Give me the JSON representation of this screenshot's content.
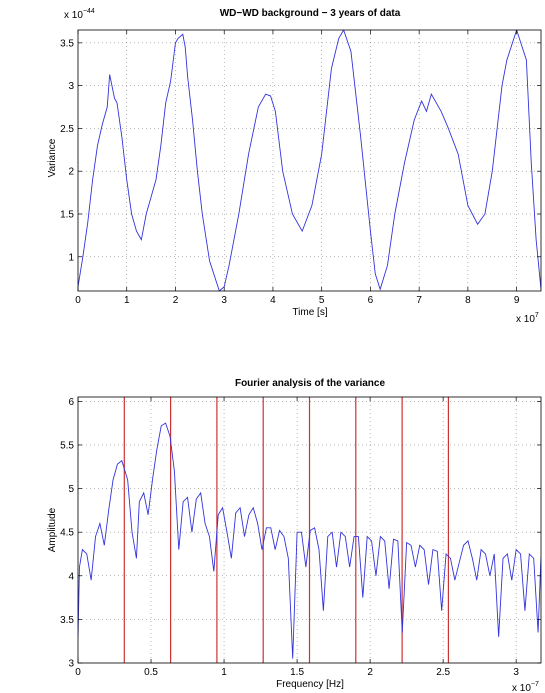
{
  "chart_data": [
    {
      "type": "line",
      "title": "WD−WD background − 3 years of data",
      "xlabel": "Time [s]",
      "ylabel": "Variance",
      "x_multiplier": "x 10",
      "x_exponent": "7",
      "y_multiplier": "x 10",
      "y_exponent": "−44",
      "xlim": [
        0,
        9.5
      ],
      "ylim": [
        0.6,
        3.65
      ],
      "xticks": [
        0,
        1,
        2,
        3,
        4,
        5,
        6,
        7,
        8,
        9
      ],
      "xtick_labels": [
        "0",
        "1",
        "2",
        "3",
        "4",
        "5",
        "6",
        "7",
        "8",
        "9"
      ],
      "yticks": [
        1,
        1.5,
        2,
        2.5,
        3,
        3.5
      ],
      "ytick_labels": [
        "1",
        "1.5",
        "2",
        "2.5",
        "3",
        "3.5"
      ],
      "grid": true,
      "line_color": "#3333dd",
      "series": [
        {
          "x": [
            0,
            0.1,
            0.2,
            0.3,
            0.4,
            0.5,
            0.6,
            0.65,
            0.75,
            0.8,
            0.9,
            1.0,
            1.1,
            1.2,
            1.3,
            1.4,
            1.5,
            1.6,
            1.7,
            1.8,
            1.9,
            2.0,
            2.05,
            2.15,
            2.2,
            2.25,
            2.35,
            2.45,
            2.55,
            2.7,
            2.9,
            3.0,
            3.1,
            3.3,
            3.5,
            3.7,
            3.85,
            3.95,
            4.05,
            4.2,
            4.4,
            4.6,
            4.8,
            5.0,
            5.2,
            5.35,
            5.45,
            5.6,
            5.8,
            6.0,
            6.1,
            6.2,
            6.35,
            6.5,
            6.7,
            6.9,
            7.05,
            7.15,
            7.25,
            7.45,
            7.6,
            7.8,
            8.0,
            8.2,
            8.35,
            8.5,
            8.6,
            8.7,
            8.8,
            9.0,
            9.2,
            9.3,
            9.4,
            9.5
          ],
          "y": [
            0.65,
            1.0,
            1.4,
            1.9,
            2.3,
            2.55,
            2.75,
            3.13,
            2.85,
            2.8,
            2.4,
            1.9,
            1.5,
            1.3,
            1.2,
            1.5,
            1.7,
            1.9,
            2.3,
            2.8,
            3.05,
            3.5,
            3.55,
            3.6,
            3.45,
            3.1,
            2.6,
            2.0,
            1.5,
            0.95,
            0.6,
            0.65,
            0.9,
            1.5,
            2.2,
            2.75,
            2.9,
            2.88,
            2.7,
            2.0,
            1.5,
            1.3,
            1.6,
            2.2,
            3.2,
            3.55,
            3.65,
            3.4,
            2.4,
            1.3,
            0.8,
            0.62,
            0.9,
            1.5,
            2.1,
            2.6,
            2.82,
            2.7,
            2.9,
            2.7,
            2.5,
            2.2,
            1.6,
            1.38,
            1.5,
            2.0,
            2.5,
            3.0,
            3.3,
            3.65,
            3.3,
            2.1,
            1.2,
            0.62
          ]
        }
      ]
    },
    {
      "type": "line",
      "title": "Fourier analysis of the variance",
      "xlabel": "Frequency [Hz]",
      "ylabel": "Amplitude",
      "x_multiplier": "x 10",
      "x_exponent": "−7",
      "xlim": [
        0,
        3.17
      ],
      "ylim": [
        3,
        6.05
      ],
      "xticks": [
        0,
        0.5,
        1,
        1.5,
        2,
        2.5,
        3
      ],
      "xtick_labels": [
        "0",
        "0.5",
        "1",
        "1.5",
        "2",
        "2.5",
        "3"
      ],
      "yticks": [
        3,
        3.5,
        4,
        4.5,
        5,
        5.5,
        6
      ],
      "ytick_labels": [
        "3",
        "3.5",
        "4",
        "4.5",
        "5",
        "5.5",
        "6"
      ],
      "grid": true,
      "line_color": "#3333dd",
      "vline_color": "#cc3333",
      "vlines": [
        0.317,
        0.634,
        0.951,
        1.268,
        1.585,
        1.902,
        2.219,
        2.536
      ],
      "series": [
        {
          "x": [
            0,
            0.01,
            0.03,
            0.06,
            0.09,
            0.12,
            0.15,
            0.18,
            0.21,
            0.24,
            0.27,
            0.3,
            0.34,
            0.37,
            0.4,
            0.42,
            0.45,
            0.48,
            0.51,
            0.54,
            0.57,
            0.6,
            0.63,
            0.66,
            0.69,
            0.72,
            0.75,
            0.78,
            0.81,
            0.84,
            0.87,
            0.9,
            0.93,
            0.96,
            0.99,
            1.02,
            1.05,
            1.08,
            1.11,
            1.14,
            1.17,
            1.2,
            1.23,
            1.26,
            1.29,
            1.32,
            1.35,
            1.38,
            1.41,
            1.44,
            1.47,
            1.5,
            1.53,
            1.56,
            1.59,
            1.62,
            1.65,
            1.68,
            1.71,
            1.74,
            1.77,
            1.8,
            1.83,
            1.86,
            1.89,
            1.92,
            1.95,
            1.98,
            2.01,
            2.04,
            2.07,
            2.1,
            2.13,
            2.16,
            2.19,
            2.22,
            2.25,
            2.28,
            2.31,
            2.34,
            2.37,
            2.4,
            2.43,
            2.46,
            2.49,
            2.52,
            2.55,
            2.58,
            2.61,
            2.64,
            2.67,
            2.7,
            2.73,
            2.76,
            2.79,
            2.82,
            2.85,
            2.88,
            2.91,
            2.94,
            2.97,
            3.0,
            3.03,
            3.06,
            3.09,
            3.12,
            3.15,
            3.17
          ],
          "y": [
            3.3,
            4.1,
            4.3,
            4.25,
            3.95,
            4.45,
            4.6,
            4.35,
            4.75,
            5.1,
            5.28,
            5.32,
            5.1,
            4.5,
            4.2,
            4.85,
            4.95,
            4.7,
            5.1,
            5.45,
            5.72,
            5.75,
            5.6,
            5.2,
            4.3,
            4.85,
            4.9,
            4.5,
            4.88,
            4.95,
            4.6,
            4.45,
            4.05,
            4.7,
            4.78,
            4.5,
            4.2,
            4.72,
            4.78,
            4.45,
            4.7,
            4.78,
            4.6,
            4.3,
            4.55,
            4.55,
            4.3,
            4.52,
            4.45,
            4.2,
            3.05,
            4.5,
            4.5,
            4.1,
            4.52,
            4.55,
            4.3,
            3.6,
            4.45,
            4.5,
            4.1,
            4.5,
            4.45,
            4.1,
            4.45,
            4.45,
            3.75,
            4.45,
            4.4,
            4.0,
            4.45,
            4.4,
            3.85,
            4.42,
            4.4,
            3.35,
            4.38,
            4.35,
            4.1,
            4.35,
            4.3,
            3.9,
            4.3,
            4.28,
            3.6,
            4.25,
            4.2,
            3.95,
            4.15,
            4.35,
            4.4,
            4.2,
            3.95,
            4.3,
            4.25,
            4.0,
            4.25,
            3.3,
            4.2,
            4.25,
            3.95,
            4.3,
            4.25,
            3.6,
            4.25,
            4.2,
            3.35,
            4.22
          ]
        }
      ]
    }
  ]
}
